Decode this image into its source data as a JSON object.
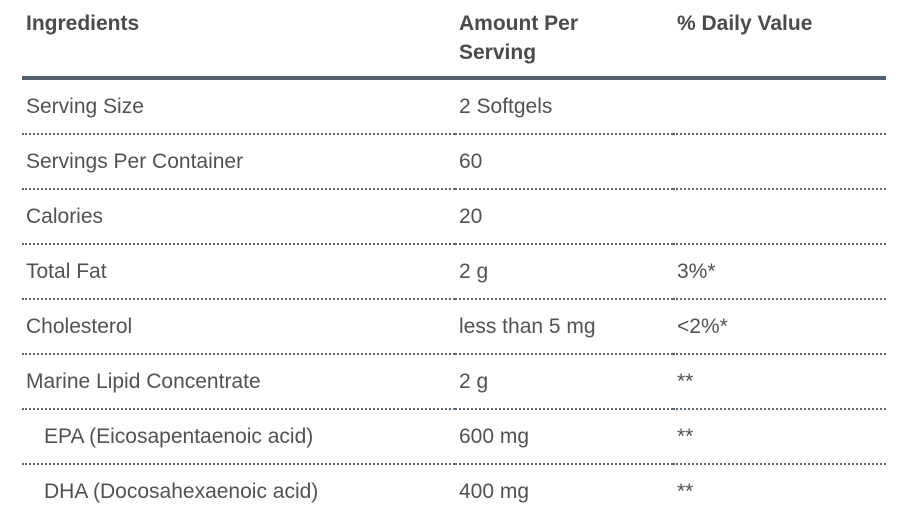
{
  "table": {
    "columns": [
      {
        "label": "Ingredients"
      },
      {
        "label": "Amount Per Serving"
      },
      {
        "label": "% Daily Value"
      }
    ],
    "rows": [
      {
        "ingredient": "Serving Size",
        "amount": "2 Softgels",
        "daily_value": "",
        "indent": false
      },
      {
        "ingredient": "Servings Per Container",
        "amount": "60",
        "daily_value": "",
        "indent": false
      },
      {
        "ingredient": "Calories",
        "amount": "20",
        "daily_value": "",
        "indent": false
      },
      {
        "ingredient": "Total Fat",
        "amount": "2 g",
        "daily_value": "3%*",
        "indent": false
      },
      {
        "ingredient": "Cholesterol",
        "amount": "less than 5 mg",
        "daily_value": "<2%*",
        "indent": false
      },
      {
        "ingredient": "Marine Lipid Concentrate",
        "amount": "2 g",
        "daily_value": "**",
        "indent": false
      },
      {
        "ingredient": "EPA (Eicosapentaenoic acid)",
        "amount": "600 mg",
        "daily_value": "**",
        "indent": true
      },
      {
        "ingredient": "DHA (Docosahexaenoic acid)",
        "amount": "400 mg",
        "daily_value": "**",
        "indent": true
      }
    ],
    "colors": {
      "header_text": "#4a4b4d",
      "body_text": "#515256",
      "header_rule": "#53606b",
      "row_rule": "#5b6771"
    }
  }
}
